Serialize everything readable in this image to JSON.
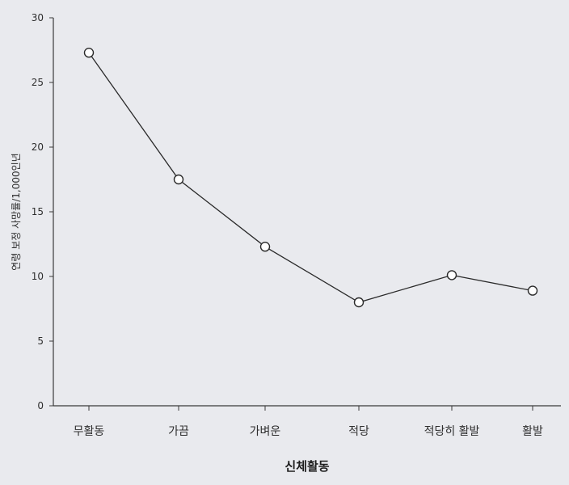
{
  "chart_data": {
    "type": "line",
    "title": "",
    "xlabel": "신체활동",
    "ylabel": "연령 보정 사망률/1,000인년",
    "categories": [
      "무활동",
      "가끔",
      "가벼운",
      "적당",
      "적당히 활발",
      "활발"
    ],
    "series": [
      {
        "values": [
          27.3,
          17.5,
          12.3,
          8.0,
          10.1,
          8.9
        ]
      }
    ],
    "ylim": [
      0,
      30
    ],
    "yticks": [
      0,
      5,
      10,
      15,
      20,
      25,
      30
    ],
    "marker": "open-circle",
    "grid": false,
    "legend": "none"
  }
}
